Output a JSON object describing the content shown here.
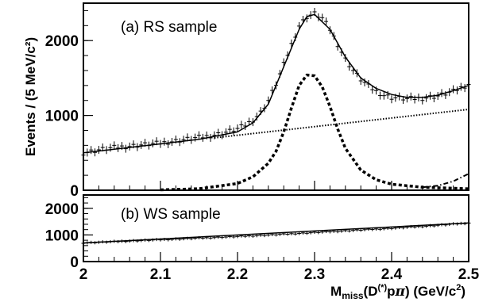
{
  "chart_data": [
    {
      "type": "line",
      "panel_label": "(a) RS sample",
      "ylabel": "Events / (5 MeV/c²)",
      "xlim": [
        2.0,
        2.5
      ],
      "ylim": [
        0,
        2500
      ],
      "yticks": [
        0,
        1000,
        2000
      ],
      "series": [
        {
          "style": "data points with error bars",
          "x": [
            2.0,
            2.02,
            2.04,
            2.06,
            2.08,
            2.1,
            2.12,
            2.14,
            2.16,
            2.18,
            2.2,
            2.21,
            2.22,
            2.23,
            2.24,
            2.25,
            2.26,
            2.27,
            2.28,
            2.29,
            2.3,
            2.31,
            2.32,
            2.33,
            2.34,
            2.35,
            2.36,
            2.37,
            2.38,
            2.39,
            2.4,
            2.42,
            2.44,
            2.46,
            2.48,
            2.5
          ],
          "y": [
            500,
            540,
            570,
            590,
            610,
            630,
            660,
            690,
            720,
            760,
            820,
            870,
            940,
            1040,
            1200,
            1420,
            1680,
            1950,
            2200,
            2320,
            2360,
            2300,
            2150,
            1950,
            1750,
            1600,
            1480,
            1390,
            1320,
            1270,
            1240,
            1220,
            1230,
            1260,
            1320,
            1420
          ]
        },
        {
          "style": "solid line (total fit)",
          "x": [
            2.0,
            2.05,
            2.1,
            2.15,
            2.2,
            2.22,
            2.24,
            2.26,
            2.28,
            2.29,
            2.3,
            2.32,
            2.34,
            2.36,
            2.38,
            2.4,
            2.42,
            2.44,
            2.46,
            2.48,
            2.5
          ],
          "y": [
            500,
            560,
            620,
            680,
            780,
            900,
            1150,
            1650,
            2150,
            2320,
            2350,
            2150,
            1780,
            1500,
            1360,
            1280,
            1240,
            1240,
            1270,
            1330,
            1400
          ]
        },
        {
          "style": "dashed line (signal)",
          "x": [
            2.1,
            2.15,
            2.2,
            2.22,
            2.24,
            2.25,
            2.26,
            2.27,
            2.28,
            2.29,
            2.3,
            2.31,
            2.32,
            2.33,
            2.34,
            2.36,
            2.38,
            2.4,
            2.44,
            2.5
          ],
          "y": [
            5,
            20,
            90,
            180,
            360,
            520,
            780,
            1100,
            1400,
            1540,
            1530,
            1380,
            1120,
            820,
            560,
            270,
            140,
            80,
            40,
            20
          ]
        },
        {
          "style": "dotted line (background)",
          "x": [
            2.17,
            2.5
          ],
          "y": [
            700,
            1080
          ]
        },
        {
          "style": "dash-dot line",
          "x": [
            2.44,
            2.46,
            2.48,
            2.5
          ],
          "y": [
            40,
            60,
            120,
            220
          ]
        }
      ]
    },
    {
      "type": "line",
      "panel_label": "(b) WS sample",
      "xlabel": "M_miss(D^(*)pπ) (GeV/c²)",
      "xlim": [
        2.0,
        2.5
      ],
      "ylim": [
        0,
        2500
      ],
      "yticks": [
        0,
        1000,
        2000
      ],
      "xticks": [
        "2",
        "2.1",
        "2.2",
        "2.3",
        "2.4",
        "2.5"
      ],
      "series": [
        {
          "style": "data points with error bars",
          "x": [
            2.0,
            2.05,
            2.1,
            2.15,
            2.2,
            2.25,
            2.3,
            2.35,
            2.4,
            2.45,
            2.5
          ],
          "y": [
            700,
            760,
            820,
            880,
            940,
            1010,
            1090,
            1170,
            1250,
            1340,
            1450
          ]
        },
        {
          "style": "solid line",
          "x": [
            2.0,
            2.5
          ],
          "y": [
            700,
            1450
          ]
        }
      ]
    }
  ]
}
